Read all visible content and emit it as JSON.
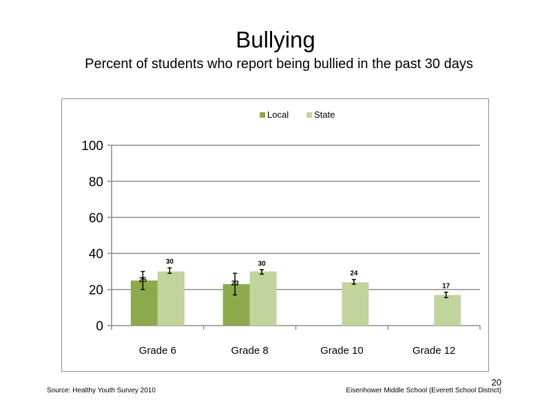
{
  "slide": {
    "title": "Bullying",
    "subtitle": "Percent of students who report being bullied in the past 30 days",
    "source": "Source: Healthy Youth Survey 2010",
    "school": "Eisenhower Middle  School (Everett School District)",
    "page_number": "20"
  },
  "chart_data": {
    "type": "bar",
    "title": "",
    "xlabel": "",
    "ylabel": "",
    "categories": [
      "Grade 6",
      "Grade 8",
      "Grade 10",
      "Grade 12"
    ],
    "ylim": [
      0,
      100
    ],
    "yticks": [
      "0",
      "20",
      "40",
      "60",
      "80",
      "100"
    ],
    "grid": true,
    "legend_position": "top-center",
    "series": [
      {
        "name": "Local",
        "color": "#8caa4c",
        "values": [
          25,
          23,
          null,
          null
        ],
        "labels": [
          "25",
          "23",
          "",
          ""
        ],
        "error_low": [
          20,
          17,
          null,
          null
        ],
        "error_high": [
          30,
          29,
          null,
          null
        ]
      },
      {
        "name": "State",
        "color": "#c1d49c",
        "values": [
          30,
          30,
          24,
          17
        ],
        "labels": [
          "30",
          "30",
          "24",
          "17"
        ],
        "error_low": [
          29,
          28.5,
          23,
          15.5
        ],
        "error_high": [
          32,
          31,
          25.5,
          18.5
        ]
      }
    ]
  }
}
